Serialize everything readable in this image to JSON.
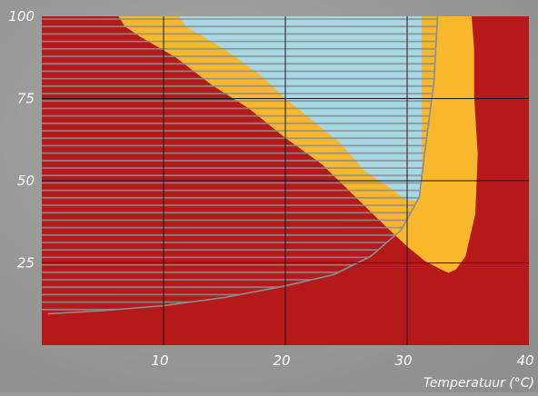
{
  "chart_data": {
    "type": "area",
    "title": "",
    "xlabel": "Temperatuur (°C)",
    "ylabel": "",
    "xlim": [
      0,
      40
    ],
    "ylim": [
      0,
      100
    ],
    "x_ticks": [
      {
        "value": 10,
        "label": "10"
      },
      {
        "value": 20,
        "label": "20"
      },
      {
        "value": 30,
        "label": "30"
      },
      {
        "value": 40,
        "label": "40"
      }
    ],
    "y_ticks": [
      {
        "value": 25,
        "label": "25"
      },
      {
        "value": 50,
        "label": "50"
      },
      {
        "value": 75,
        "label": "75"
      },
      {
        "value": 100,
        "label": "100"
      }
    ],
    "grid": true,
    "colors": {
      "red": "#b5191a",
      "yellow": "#f9b72b",
      "blue": "#a6d8e6",
      "grid": "#1a1a1a",
      "hatch": "#8a8f92",
      "label": "#ffffff",
      "background": "#9a9a98"
    },
    "regions": [
      {
        "fill": "red",
        "points": [
          [
            0,
            0
          ],
          [
            40,
            0
          ],
          [
            40,
            100
          ],
          [
            0,
            100
          ]
        ]
      },
      {
        "fill": "yellow",
        "points": [
          [
            6.3,
            100
          ],
          [
            6.8,
            97
          ],
          [
            8,
            94
          ],
          [
            11,
            87.5
          ],
          [
            14,
            79
          ],
          [
            17,
            72
          ],
          [
            20,
            63
          ],
          [
            23,
            55
          ],
          [
            25.5,
            46
          ],
          [
            28,
            37
          ],
          [
            30,
            30
          ],
          [
            31.5,
            25.5
          ],
          [
            32.8,
            23
          ],
          [
            33.4,
            22
          ],
          [
            34,
            23
          ],
          [
            34.8,
            27
          ],
          [
            35.6,
            40
          ],
          [
            35.8,
            58
          ],
          [
            35.5,
            76
          ],
          [
            35.5,
            90
          ],
          [
            35.3,
            100
          ]
        ]
      },
      {
        "fill": "blue",
        "points": [
          [
            11.3,
            100
          ],
          [
            11.8,
            97
          ],
          [
            15,
            90
          ],
          [
            18,
            82
          ],
          [
            20,
            75
          ],
          [
            22,
            69
          ],
          [
            24.5,
            61.5
          ],
          [
            26.5,
            53
          ],
          [
            28.5,
            48
          ],
          [
            30,
            44
          ],
          [
            30.9,
            44
          ],
          [
            31.2,
            48
          ],
          [
            31.2,
            55
          ],
          [
            31.2,
            75
          ],
          [
            31.2,
            100
          ]
        ]
      }
    ],
    "hatch_area": {
      "boundary": [
        [
          0.5,
          9.5
        ],
        [
          5,
          10.5
        ],
        [
          10,
          12
        ],
        [
          15,
          14.5
        ],
        [
          20,
          18
        ],
        [
          24,
          21.5
        ],
        [
          27,
          27
        ],
        [
          29.5,
          35
        ],
        [
          31,
          45
        ],
        [
          31.5,
          60
        ],
        [
          32.2,
          80
        ],
        [
          32.5,
          100
        ]
      ]
    }
  }
}
